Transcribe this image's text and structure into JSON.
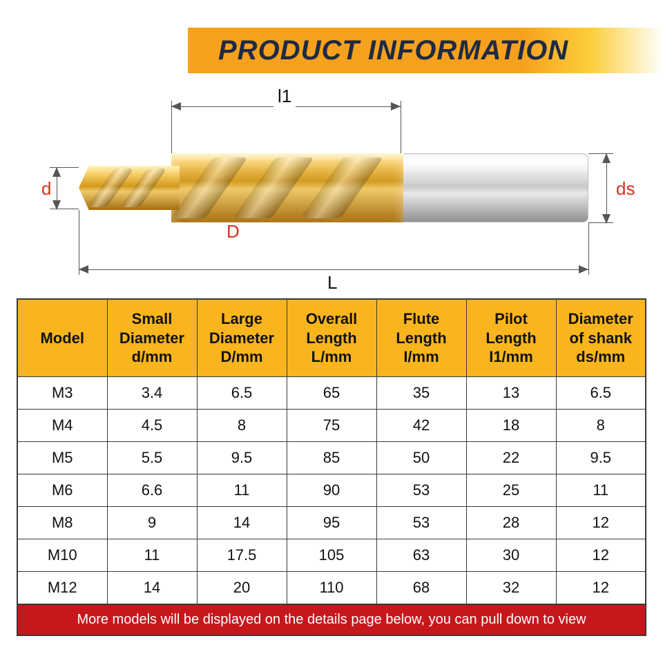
{
  "banner": {
    "title": "PRODUCT INFORMATION"
  },
  "diagram": {
    "labels": {
      "l1": "l1",
      "d": "d",
      "D": "D",
      "L": "L",
      "ds": "ds"
    },
    "colors": {
      "dim_line": "#555555",
      "label_red": "#d6301b",
      "gold_grad_top": "#fff2c0",
      "gold_grad_mid": "#d39a1e",
      "gold_grad_low": "#a66f10",
      "steel_light": "#f5f5f5",
      "steel_dark": "#8e8e8e"
    }
  },
  "table": {
    "header_bg": "#f9b51e",
    "border_color": "#3a3a3a",
    "columns": [
      "Model",
      "Small Diameter d/mm",
      "Large Diameter D/mm",
      "Overall Length L/mm",
      "Flute Length I/mm",
      "Pilot Length I1/mm",
      "Diameter of shank ds/mm"
    ],
    "rows": [
      [
        "M3",
        "3.4",
        "6.5",
        "65",
        "35",
        "13",
        "6.5"
      ],
      [
        "M4",
        "4.5",
        "8",
        "75",
        "42",
        "18",
        "8"
      ],
      [
        "M5",
        "5.5",
        "9.5",
        "85",
        "50",
        "22",
        "9.5"
      ],
      [
        "M6",
        "6.6",
        "11",
        "90",
        "53",
        "25",
        "11"
      ],
      [
        "M8",
        "9",
        "14",
        "95",
        "53",
        "28",
        "12"
      ],
      [
        "M10",
        "11",
        "17.5",
        "105",
        "63",
        "30",
        "12"
      ],
      [
        "M12",
        "14",
        "20",
        "110",
        "68",
        "32",
        "12"
      ]
    ]
  },
  "footer": {
    "text": "More models will be displayed on the details page below, you can pull down to view",
    "bg": "#c6171d",
    "color": "#ffffff"
  }
}
